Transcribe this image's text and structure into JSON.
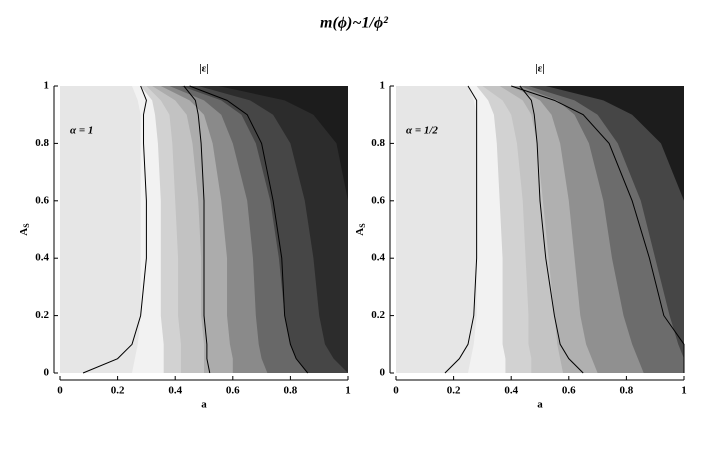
{
  "title": "m(ϕ)~1/ϕ²",
  "chart_data": [
    {
      "type": "contour",
      "title": "|ε|",
      "xlabel": "a",
      "ylabel": "A",
      "ylabel_subscript": "S",
      "annotation": "α = 1",
      "xlim": [
        0,
        1
      ],
      "ylim": [
        0,
        1
      ],
      "xticks": [
        0,
        0.2,
        0.4,
        0.6,
        0.8,
        1
      ],
      "yticks": [
        0,
        0.2,
        0.4,
        0.6,
        0.8,
        1
      ],
      "background": "#e6e6e6",
      "line_color": "#000000",
      "y": [
        0,
        0.05,
        0.1,
        0.2,
        0.4,
        0.6,
        0.8,
        0.9,
        0.95,
        1
      ],
      "bands": [
        {
          "color": "#f2f2f2",
          "x": [
            0.25,
            0.26,
            0.27,
            0.28,
            0.28,
            0.28,
            0.28,
            0.28,
            0.27,
            0.25
          ]
        },
        {
          "color": "#d2d2d2",
          "x": [
            0.36,
            0.36,
            0.36,
            0.35,
            0.35,
            0.35,
            0.34,
            0.33,
            0.32,
            0.28
          ]
        },
        {
          "color": "#c2c2c2",
          "x": [
            0.42,
            0.42,
            0.42,
            0.41,
            0.41,
            0.4,
            0.39,
            0.38,
            0.35,
            0.3
          ]
        },
        {
          "color": "#acacac",
          "x": [
            0.5,
            0.5,
            0.5,
            0.49,
            0.49,
            0.48,
            0.46,
            0.44,
            0.4,
            0.32
          ]
        },
        {
          "color": "#8a8a8a",
          "x": [
            0.6,
            0.6,
            0.59,
            0.58,
            0.58,
            0.56,
            0.53,
            0.5,
            0.45,
            0.35
          ]
        },
        {
          "color": "#686868",
          "x": [
            0.72,
            0.7,
            0.69,
            0.68,
            0.67,
            0.65,
            0.6,
            0.56,
            0.5,
            0.38
          ]
        },
        {
          "color": "#464646",
          "x": [
            0.86,
            0.82,
            0.8,
            0.78,
            0.76,
            0.73,
            0.68,
            0.63,
            0.56,
            0.42
          ]
        },
        {
          "color": "#2c2c2c",
          "x": [
            1,
            0.95,
            0.92,
            0.9,
            0.88,
            0.85,
            0.8,
            0.74,
            0.66,
            0.48
          ]
        },
        {
          "color": "#1c1c1c",
          "x": [
            1,
            1,
            1,
            1,
            1,
            1,
            0.96,
            0.88,
            0.78,
            0.55
          ]
        }
      ],
      "contours": [
        {
          "x": [
            0.08,
            0.2,
            0.25,
            0.28,
            0.3,
            0.3,
            0.29,
            0.29,
            0.3,
            0.28
          ]
        },
        {
          "x": [
            0.52,
            0.51,
            0.51,
            0.5,
            0.5,
            0.5,
            0.49,
            0.48,
            0.47,
            0.43
          ]
        },
        {
          "x": [
            0.86,
            0.82,
            0.8,
            0.78,
            0.77,
            0.74,
            0.7,
            0.65,
            0.58,
            0.45
          ]
        }
      ]
    },
    {
      "type": "contour",
      "title": "|ε|",
      "xlabel": "a",
      "ylabel": "A",
      "ylabel_subscript": "S",
      "annotation": "α = 1/2",
      "xlim": [
        0,
        1
      ],
      "ylim": [
        0,
        1
      ],
      "xticks": [
        0,
        0.2,
        0.4,
        0.6,
        0.8,
        1
      ],
      "yticks": [
        0,
        0.2,
        0.4,
        0.6,
        0.8,
        1
      ],
      "background": "#e6e6e6",
      "line_color": "#000000",
      "y": [
        0,
        0.05,
        0.1,
        0.2,
        0.4,
        0.6,
        0.8,
        0.9,
        0.95,
        1
      ],
      "bands": [
        {
          "color": "#f2f2f2",
          "x": [
            0.25,
            0.26,
            0.27,
            0.28,
            0.28,
            0.28,
            0.28,
            0.28,
            0.27,
            0.25
          ]
        },
        {
          "color": "#d2d2d2",
          "x": [
            0.38,
            0.38,
            0.37,
            0.37,
            0.37,
            0.36,
            0.35,
            0.34,
            0.32,
            0.28
          ]
        },
        {
          "color": "#c4c4c4",
          "x": [
            0.47,
            0.47,
            0.46,
            0.46,
            0.45,
            0.44,
            0.42,
            0.4,
            0.37,
            0.3
          ]
        },
        {
          "color": "#b0b0b0",
          "x": [
            0.58,
            0.57,
            0.56,
            0.55,
            0.53,
            0.51,
            0.49,
            0.47,
            0.44,
            0.36
          ]
        },
        {
          "color": "#909090",
          "x": [
            0.7,
            0.68,
            0.66,
            0.64,
            0.62,
            0.6,
            0.57,
            0.54,
            0.5,
            0.4
          ]
        },
        {
          "color": "#6c6c6c",
          "x": [
            0.86,
            0.84,
            0.82,
            0.79,
            0.75,
            0.72,
            0.67,
            0.62,
            0.56,
            0.43
          ]
        },
        {
          "color": "#464646",
          "x": [
            1,
            1,
            0.98,
            0.95,
            0.9,
            0.85,
            0.77,
            0.7,
            0.62,
            0.46
          ]
        },
        {
          "color": "#1c1c1c",
          "x": [
            1,
            1,
            1,
            1,
            1,
            1,
            0.92,
            0.82,
            0.72,
            0.52
          ]
        }
      ],
      "contours": [
        {
          "x": [
            0.17,
            0.22,
            0.25,
            0.27,
            0.28,
            0.28,
            0.28,
            0.28,
            0.28,
            0.25
          ]
        },
        {
          "x": [
            0.65,
            0.6,
            0.57,
            0.55,
            0.52,
            0.5,
            0.49,
            0.48,
            0.47,
            0.43
          ]
        },
        {
          "x": [
            1,
            1,
            1,
            0.93,
            0.88,
            0.82,
            0.74,
            0.65,
            0.55,
            0.4
          ]
        }
      ]
    }
  ]
}
